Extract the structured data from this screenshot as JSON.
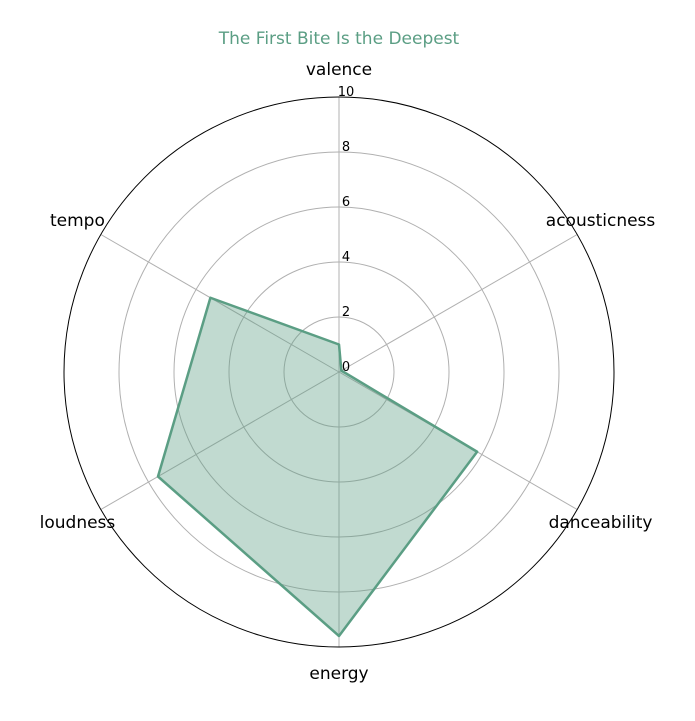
{
  "chart_data": {
    "type": "radar",
    "title": "The First Bite Is the Deepest",
    "axes": [
      "valence",
      "acousticness",
      "danceability",
      "energy",
      "loudness",
      "tempo"
    ],
    "values": [
      1.0,
      0.1,
      5.8,
      9.6,
      7.6,
      5.4
    ],
    "rlim": [
      0,
      10
    ],
    "rticks": [
      0,
      2,
      4,
      6,
      8,
      10
    ],
    "grid": true,
    "colors": {
      "series": "#5b9e84",
      "fill": "rgba(91,158,132,0.38)",
      "grid": "#b0b0b0",
      "spine": "#000000"
    }
  }
}
